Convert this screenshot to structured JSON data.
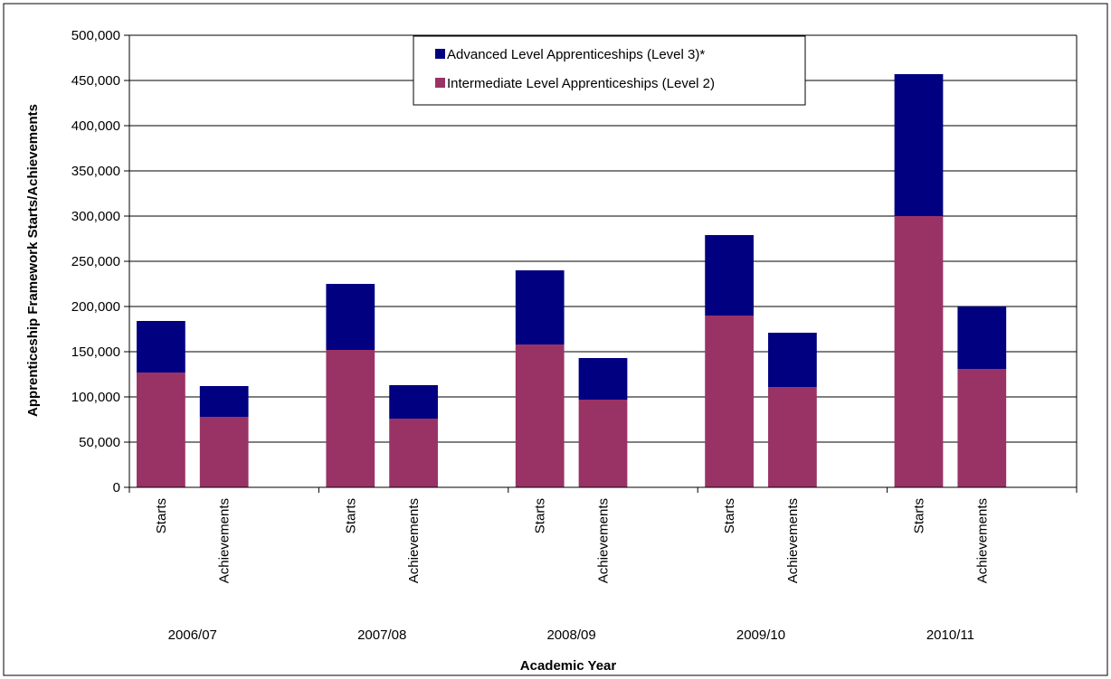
{
  "chart_data": {
    "type": "bar",
    "stacked": true,
    "xlabel": "Academic Year",
    "ylabel": "Apprenticeship Framework Starts/Achievements",
    "ylim": [
      0,
      500000
    ],
    "yticks": [
      "0",
      "50,000",
      "100,000",
      "150,000",
      "200,000",
      "250,000",
      "300,000",
      "350,000",
      "400,000",
      "450,000",
      "500,000"
    ],
    "grid": true,
    "legend_position": "top-center",
    "groups": [
      "2006/07",
      "2007/08",
      "2008/09",
      "2009/10",
      "2010/11"
    ],
    "bar_labels": [
      "Starts",
      "Achievements"
    ],
    "categories": [
      "2006/07 Starts",
      "2006/07 Achievements",
      "2007/08 Starts",
      "2007/08 Achievements",
      "2008/09 Starts",
      "2008/09 Achievements",
      "2009/10 Starts",
      "2009/10 Achievements",
      "2010/11 Starts",
      "2010/11 Achievements"
    ],
    "series": [
      {
        "name": "Intermediate Level Apprenticeships (Level 2)",
        "color": "#993366",
        "values": [
          127000,
          78000,
          152000,
          76000,
          158000,
          97000,
          190000,
          111000,
          300000,
          131000
        ]
      },
      {
        "name": "Advanced Level Apprenticeships (Level 3)*",
        "color": "#000080",
        "values": [
          57000,
          34000,
          73000,
          37000,
          82000,
          46000,
          89000,
          60000,
          157000,
          69000
        ]
      }
    ],
    "legend_order": [
      1,
      0
    ]
  }
}
